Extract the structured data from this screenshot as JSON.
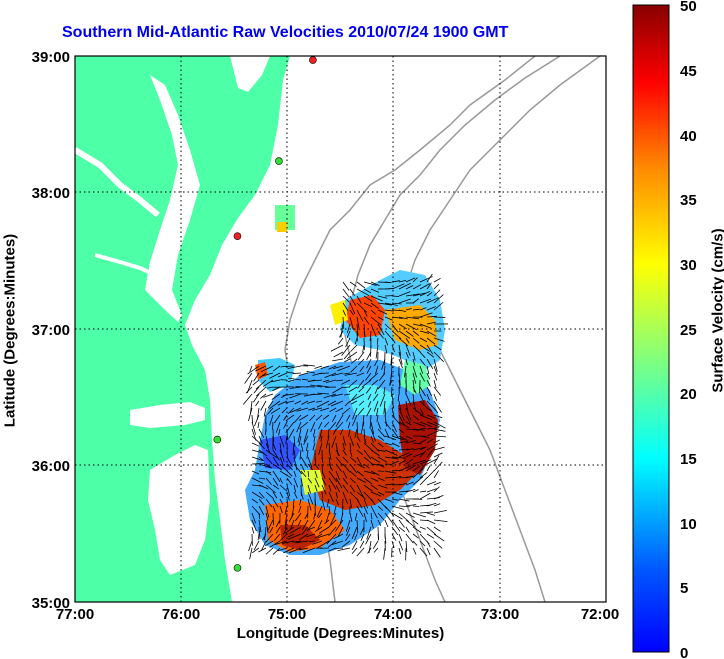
{
  "title": "Southern Mid-Atlantic Raw Velocities 2010/07/24 1900 GMT",
  "xlabel": "Longitude (Degrees:Minutes)",
  "ylabel": "Latitude (Degrees:Minutes)",
  "x_ticks": [
    "77:00",
    "76:00",
    "75:00",
    "74:00",
    "73:00",
    "72:00"
  ],
  "y_ticks": [
    "39:00",
    "38:00",
    "37:00",
    "36:00",
    "35:00"
  ],
  "colorbar": {
    "label": "Surface Velocity (cm/s)",
    "ticks": [
      "0",
      "5",
      "10",
      "15",
      "20",
      "25",
      "30",
      "35",
      "40",
      "45",
      "50"
    ],
    "range": [
      0,
      50
    ],
    "colormap": "jet"
  },
  "colors": {
    "land": "#4dffa6",
    "ocean": "#ffffff",
    "bathymetry": "#999999",
    "grid": "#000000",
    "title": "#0000ee",
    "station_green": "#33dd33",
    "station_red": "#ee2222"
  },
  "extent": {
    "lon": [
      -77,
      -72
    ],
    "lat": [
      35,
      39
    ]
  },
  "grid": true,
  "stations": [
    {
      "lon": -74.76,
      "lat": 38.97,
      "status": "red"
    },
    {
      "lon": -75.08,
      "lat": 38.23,
      "status": "green"
    },
    {
      "lon": -75.47,
      "lat": 37.68,
      "status": "red"
    },
    {
      "lon": -75.66,
      "lat": 36.19,
      "status": "green"
    },
    {
      "lon": -75.47,
      "lat": 35.25,
      "status": "green"
    }
  ]
}
